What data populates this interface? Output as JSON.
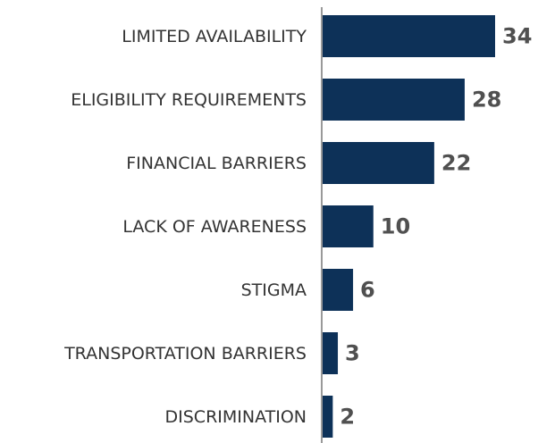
{
  "chart_data": {
    "type": "hbar",
    "categories": [
      "LIMITED AVAILABILITY",
      "ELIGIBILITY REQUIREMENTS",
      "FINANCIAL BARRIERS",
      "LACK OF AWARENESS",
      "STIGMA",
      "TRANSPORTATION BARRIERS",
      "DISCRIMINATION"
    ],
    "values": [
      34,
      28,
      22,
      10,
      6,
      3,
      2
    ],
    "color": "#0d3158"
  }
}
